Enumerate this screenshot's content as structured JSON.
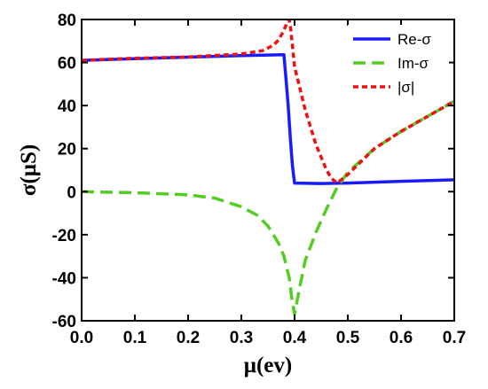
{
  "chart_data": {
    "type": "line",
    "title": "",
    "xlabel": "μ(ev)",
    "ylabel": "σ(μS)",
    "xlim": [
      0.0,
      0.7
    ],
    "ylim": [
      -60,
      80
    ],
    "xticks": [
      0.0,
      0.1,
      0.2,
      0.3,
      0.4,
      0.5,
      0.6,
      0.7
    ],
    "xtick_labels": [
      "0.0",
      "0.1",
      "0.2",
      "0.3",
      "0.4",
      "0.5",
      "0.6",
      "0.7"
    ],
    "yticks": [
      -60,
      -40,
      -20,
      0,
      20,
      40,
      60,
      80
    ],
    "ytick_labels": [
      "-60",
      "-40",
      "-20",
      "0",
      "20",
      "40",
      "60",
      "80"
    ],
    "grid": false,
    "legend_position": "top-right",
    "series": [
      {
        "name": "Re-σ",
        "color": "#1a1aff",
        "dash": "solid",
        "x": [
          0.0,
          0.1,
          0.2,
          0.3,
          0.35,
          0.38,
          0.383,
          0.388,
          0.392,
          0.396,
          0.4,
          0.45,
          0.5,
          0.6,
          0.7
        ],
        "y": [
          61,
          61.8,
          62.5,
          63.2,
          63.5,
          63.6,
          55,
          40,
          25,
          12,
          4,
          3.8,
          4.0,
          4.8,
          5.5
        ]
      },
      {
        "name": "Im-σ",
        "color": "#55cc22",
        "dash": "dashed",
        "x": [
          0.0,
          0.1,
          0.2,
          0.25,
          0.3,
          0.33,
          0.35,
          0.37,
          0.38,
          0.39,
          0.395,
          0.4,
          0.41,
          0.42,
          0.44,
          0.46,
          0.48,
          0.5,
          0.55,
          0.6,
          0.65,
          0.7
        ],
        "y": [
          0,
          -0.5,
          -1.5,
          -3,
          -7,
          -11,
          -16,
          -24,
          -30,
          -40,
          -50,
          -57,
          -44,
          -32,
          -19,
          -8,
          2,
          9,
          20,
          28,
          35,
          42
        ]
      },
      {
        "name": "|σ|",
        "color": "#ee1111",
        "dash": "dotted",
        "x": [
          0.0,
          0.1,
          0.2,
          0.3,
          0.34,
          0.36,
          0.37,
          0.38,
          0.385,
          0.39,
          0.393,
          0.4,
          0.41,
          0.42,
          0.44,
          0.46,
          0.47,
          0.48,
          0.5,
          0.55,
          0.6,
          0.65,
          0.7
        ],
        "y": [
          61,
          62,
          62.6,
          64,
          65.5,
          68,
          70.5,
          75,
          78,
          80,
          75,
          58,
          48,
          38,
          22,
          10,
          6,
          4,
          8,
          20,
          28,
          35,
          42
        ]
      }
    ]
  }
}
